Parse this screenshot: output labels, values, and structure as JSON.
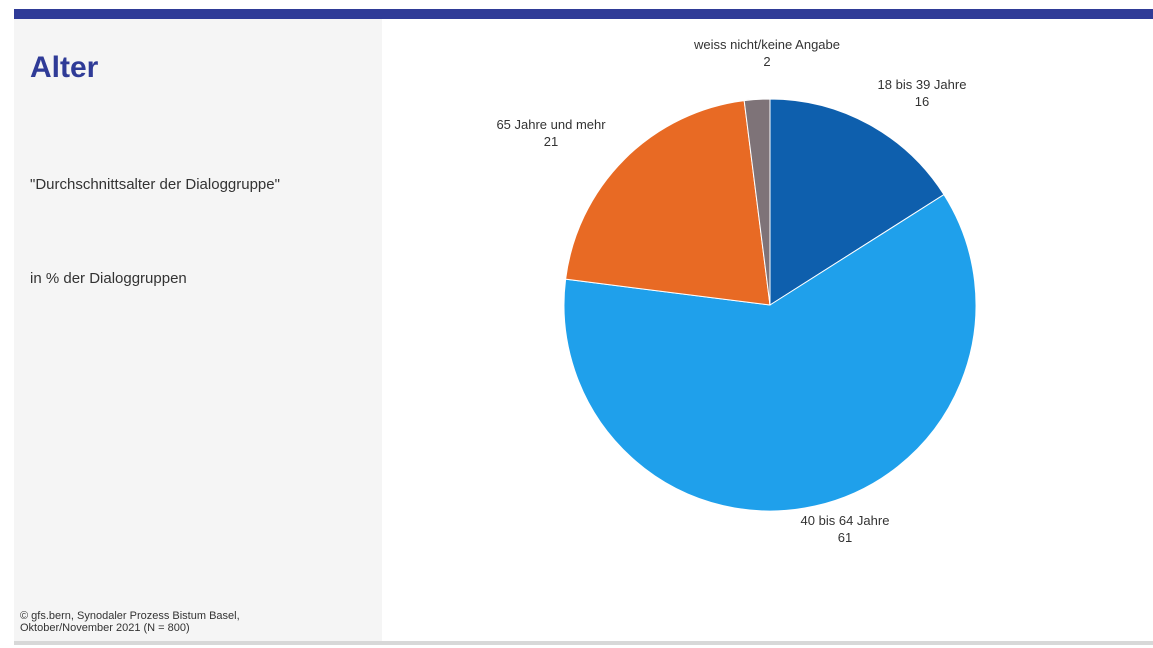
{
  "slide": {
    "title": "Alter",
    "subtitle": "\"Durchschnittsalter der Dialoggruppe\"",
    "unit_note": "in % der Dialoggruppen",
    "footer_line1": "© gfs.bern, Synodaler Prozess Bistum Basel,",
    "footer_line2": "Oktober/November 2021 (N = 800)"
  },
  "colors": {
    "accent_bar": "#2f3b97",
    "title": "#2f3b97",
    "sidebar_bg": "#f5f5f5"
  },
  "chart_data": {
    "type": "pie",
    "title": "",
    "slices": [
      {
        "label": "18 bis 39 Jahre",
        "value": 16,
        "color": "#0e5fad"
      },
      {
        "label": "40 bis 64 Jahre",
        "value": 61,
        "color": "#1fa0eb"
      },
      {
        "label": "65 Jahre und mehr",
        "value": 21,
        "color": "#e86a24"
      },
      {
        "label": "weiss nicht/keine Angabe",
        "value": 2,
        "color": "#7e7378"
      }
    ],
    "legend": "none",
    "data_labels": "outside"
  }
}
